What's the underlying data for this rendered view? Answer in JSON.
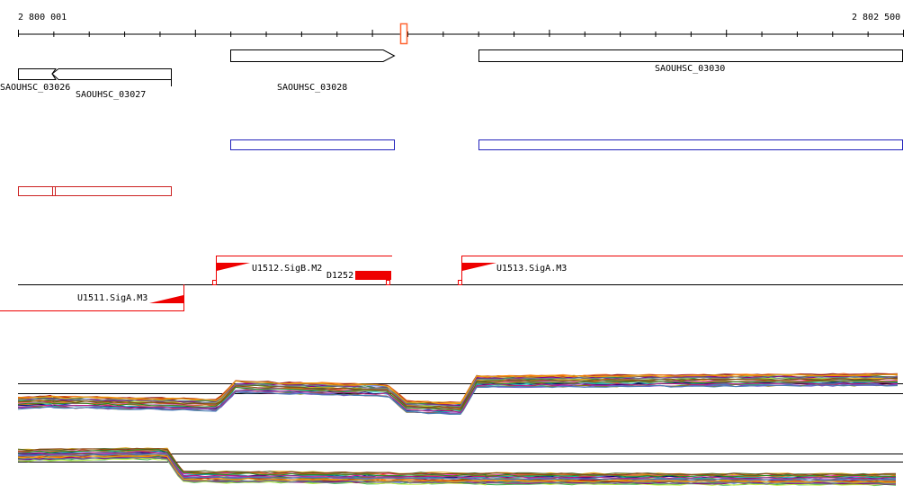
{
  "ruler": {
    "start_label": "2 800 001",
    "end_label": "2 802 500"
  },
  "genes": [
    {
      "name": "SAOUHSC_03026",
      "strand": "-"
    },
    {
      "name": "SAOUHSC_03027",
      "strand": "-"
    },
    {
      "name": "SAOUHSC_03028",
      "strand": "+"
    },
    {
      "name": "SAOUHSC_03030",
      "strand": "+"
    }
  ],
  "promoters": [
    {
      "name": "U1511.SigA.M3",
      "strand": "-"
    },
    {
      "name": "U1512.SigB.M2",
      "strand": "+"
    },
    {
      "name": "U1513.SigA.M3",
      "strand": "+"
    }
  ],
  "terminators": [
    {
      "name": "D1252"
    }
  ],
  "colors": {
    "gene": "#000000",
    "annotation_blue": "#2222bb",
    "annotation_red": "#cc2222",
    "promoter": "#ee0000",
    "highlight": "#ff6633"
  }
}
